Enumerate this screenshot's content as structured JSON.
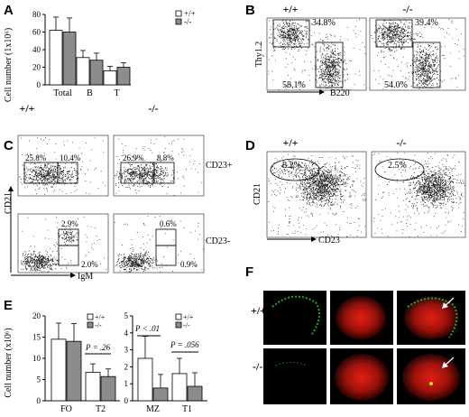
{
  "panels": [
    "A",
    "B",
    "C",
    "D",
    "E",
    "F"
  ],
  "genotype": {
    "wt": "+/+",
    "ko": "-/-"
  },
  "legend": {
    "wt": "+/+",
    "ko": "-/-"
  },
  "colors": {
    "wt_bar": "#ffffff",
    "ko_bar": "#8c8c8c",
    "dots": "#1a1a1a",
    "green": "#1faa1f",
    "red": "#d41a12"
  },
  "panelA": {
    "ylabel": "Cell number (1x10⁶)",
    "yticks": [
      "0",
      "20",
      "40",
      "60",
      "80"
    ],
    "chart_data": {
      "type": "bar",
      "categories": [
        "Total",
        "B",
        "T"
      ],
      "ylim": [
        0,
        80
      ],
      "series": [
        {
          "name": "+/+",
          "values": [
            62,
            31,
            16
          ],
          "errors": [
            15,
            8,
            5
          ]
        },
        {
          "name": "-/-",
          "values": [
            60,
            28,
            20
          ],
          "errors": [
            16,
            8,
            5
          ]
        }
      ]
    }
  },
  "panelB": {
    "xlabel": "B220",
    "ylabel": "Thy1.2",
    "wt": {
      "top": "34.8%",
      "bottom": "58.1%"
    },
    "ko": {
      "top": "39.4%",
      "bottom": "54.0%"
    }
  },
  "panelC": {
    "xlabel": "IgM",
    "ylabel": "CD21",
    "row_top_label": "CD23+",
    "row_bottom_label": "CD23-",
    "wt_top": [
      "25.8%",
      "10.4%"
    ],
    "ko_top": [
      "26.9%",
      "8.8%"
    ],
    "wt_bottom": [
      "2.9%",
      "2.0%"
    ],
    "ko_bottom": [
      "0.6%",
      "0.9%"
    ]
  },
  "panelD": {
    "xlabel": "CD23",
    "ylabel": "CD21",
    "wt_value": "8.2%",
    "ko_value": "2.5%"
  },
  "panelE": {
    "ylabel": "Cell number (x10⁶)",
    "yticks": [
      "0",
      "5",
      "10",
      "15",
      "20"
    ],
    "p_t2": "P = .26",
    "p_mz": "P < .01",
    "p_t1": "P = .056",
    "chart_data": {
      "type": "bar",
      "ylim": [
        0,
        20
      ],
      "groups": [
        {
          "categories": [
            "FO",
            "T2"
          ],
          "series": [
            {
              "name": "+/+",
              "values": [
                14.5,
                6.7
              ],
              "errors": [
                3.8,
                2.0
              ]
            },
            {
              "name": "-/-",
              "values": [
                14.0,
                5.7
              ],
              "errors": [
                4.2,
                1.8
              ]
            }
          ]
        },
        {
          "categories": [
            "MZ",
            "T1"
          ],
          "ylim": [
            0,
            5
          ],
          "yticks": [
            "0",
            "1",
            "2",
            "3",
            "4",
            "5"
          ],
          "series": [
            {
              "name": "+/+",
              "values": [
                2.5,
                1.6
              ],
              "errors": [
                1.3,
                0.9
              ]
            },
            {
              "name": "-/-",
              "values": [
                0.75,
                0.85
              ],
              "errors": [
                0.8,
                0.8
              ]
            }
          ]
        }
      ]
    }
  }
}
